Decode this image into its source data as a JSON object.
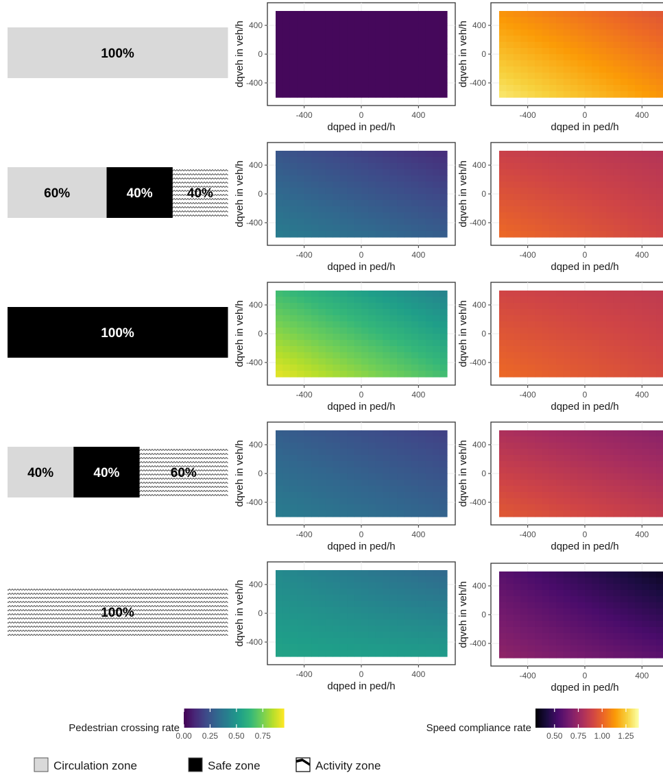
{
  "chart_data": {
    "type": "heatmap",
    "x_axis_label": "dqped in ped/h",
    "y_axis_label": "dqveh in veh/h",
    "x_ticks": [
      -400,
      0,
      400
    ],
    "y_ticks": [
      400,
      0,
      -400
    ],
    "xlim": [
      -600,
      600
    ],
    "ylim": [
      -600,
      600
    ],
    "rows": [
      {
        "bar_segments": [
          {
            "zone": "circulation",
            "label": "100%",
            "share": 1.0
          }
        ],
        "pedestrian_crossing_rate": {
          "top_left": 0.02,
          "top_right": 0.02,
          "bottom_left": 0.02,
          "bottom_right": 0.02
        },
        "speed_compliance_rate": {
          "top_left": 1.12,
          "top_right": 0.95,
          "bottom_left": 1.32,
          "bottom_right": 1.12
        }
      },
      {
        "bar_segments": [
          {
            "zone": "circulation",
            "label": "60%",
            "share": 0.45
          },
          {
            "zone": "safe",
            "label": "40%",
            "share": 0.3
          },
          {
            "zone": "activity",
            "label": "40%",
            "share": 0.25
          }
        ],
        "pedestrian_crossing_rate": {
          "top_left": 0.25,
          "top_right": 0.12,
          "bottom_left": 0.4,
          "bottom_right": 0.28
        },
        "speed_compliance_rate": {
          "top_left": 0.88,
          "top_right": 0.82,
          "bottom_left": 1.02,
          "bottom_right": 0.9
        }
      },
      {
        "bar_segments": [
          {
            "zone": "safe",
            "label": "100%",
            "share": 1.0
          }
        ],
        "pedestrian_crossing_rate": {
          "top_left": 0.65,
          "top_right": 0.42,
          "bottom_left": 0.92,
          "bottom_right": 0.66
        },
        "speed_compliance_rate": {
          "top_left": 0.9,
          "top_right": 0.85,
          "bottom_left": 1.02,
          "bottom_right": 0.92
        }
      },
      {
        "bar_segments": [
          {
            "zone": "circulation",
            "label": "40%",
            "share": 0.3
          },
          {
            "zone": "safe",
            "label": "40%",
            "share": 0.3
          },
          {
            "zone": "activity",
            "label": "60%",
            "share": 0.4
          }
        ],
        "pedestrian_crossing_rate": {
          "top_left": 0.28,
          "top_right": 0.18,
          "bottom_left": 0.4,
          "bottom_right": 0.3
        },
        "speed_compliance_rate": {
          "top_left": 0.8,
          "top_right": 0.7,
          "bottom_left": 0.97,
          "bottom_right": 0.86
        }
      },
      {
        "bar_segments": [
          {
            "zone": "activity",
            "label": "100%",
            "share": 1.0
          }
        ],
        "pedestrian_crossing_rate": {
          "top_left": 0.45,
          "top_right": 0.32,
          "bottom_left": 0.55,
          "bottom_right": 0.52
        },
        "speed_compliance_rate": {
          "top_left": 0.58,
          "top_right": 0.35,
          "bottom_left": 0.72,
          "bottom_right": 0.58
        }
      }
    ],
    "legend_pedestrian": {
      "title": "Pedestrian crossing rate",
      "palette": "viridis",
      "range": [
        0,
        0.95
      ],
      "ticks": [
        "0.00",
        "0.25",
        "0.50",
        "0.75"
      ],
      "tick_values": [
        0,
        0.25,
        0.5,
        0.75
      ]
    },
    "legend_speed": {
      "title": "Speed compliance rate",
      "palette": "inferno",
      "range": [
        0.3,
        1.38
      ],
      "ticks": [
        "0.50",
        "0.75",
        "1.00",
        "1.25"
      ],
      "tick_values": [
        0.5,
        0.75,
        1.0,
        1.25
      ]
    },
    "zone_legend": [
      {
        "zone": "circulation",
        "label": "Circulation zone"
      },
      {
        "zone": "safe",
        "label": "Safe zone"
      },
      {
        "zone": "activity",
        "label": "Activity zone"
      }
    ],
    "colors": {
      "circulation": "#d9d9d9",
      "safe": "#000000",
      "activity_pattern": "#4a4a4a",
      "panel_border": "#333333",
      "grid": "#ebebeb"
    }
  }
}
